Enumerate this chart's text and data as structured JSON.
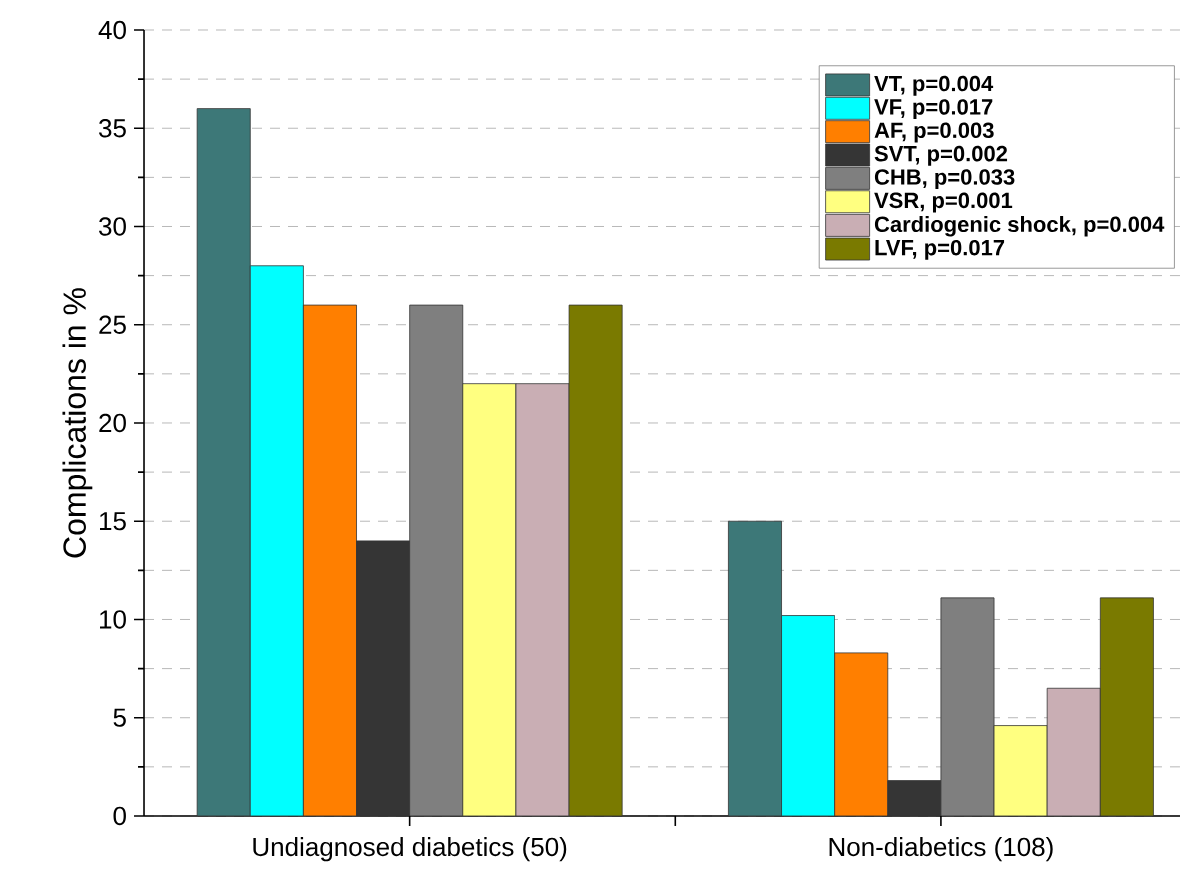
{
  "chart_data": {
    "type": "bar",
    "ylabel": "Complications in %",
    "categories": [
      "Undiagnosed diabetics (50)",
      "Non-diabetics (108)"
    ],
    "series": [
      {
        "name": "VT, p=0.004",
        "color": "#3d7878",
        "values": [
          36,
          15
        ]
      },
      {
        "name": "VF, p=0.017",
        "color": "#00ffff",
        "values": [
          28,
          10.2
        ]
      },
      {
        "name": "AF, p=0.003",
        "color": "#ff7f00",
        "values": [
          26,
          8.3
        ]
      },
      {
        "name": "SVT, p=0.002",
        "color": "#353535",
        "values": [
          14,
          1.8
        ]
      },
      {
        "name": "CHB, p=0.033",
        "color": "#7f7f7f",
        "values": [
          26,
          11.1
        ]
      },
      {
        "name": "VSR, p=0.001",
        "color": "#ffff80",
        "values": [
          22,
          4.6
        ]
      },
      {
        "name": "Cardiogenic shock, p=0.004",
        "color": "#c9aeb4",
        "values": [
          22,
          6.5
        ]
      },
      {
        "name": "LVF, p=0.017",
        "color": "#7a7a00",
        "values": [
          26,
          11.1
        ]
      }
    ],
    "ylim": [
      0,
      40
    ],
    "yticks": [
      0,
      5,
      10,
      15,
      20,
      25,
      30,
      35,
      40
    ],
    "grid": "y",
    "legend": "top right"
  }
}
